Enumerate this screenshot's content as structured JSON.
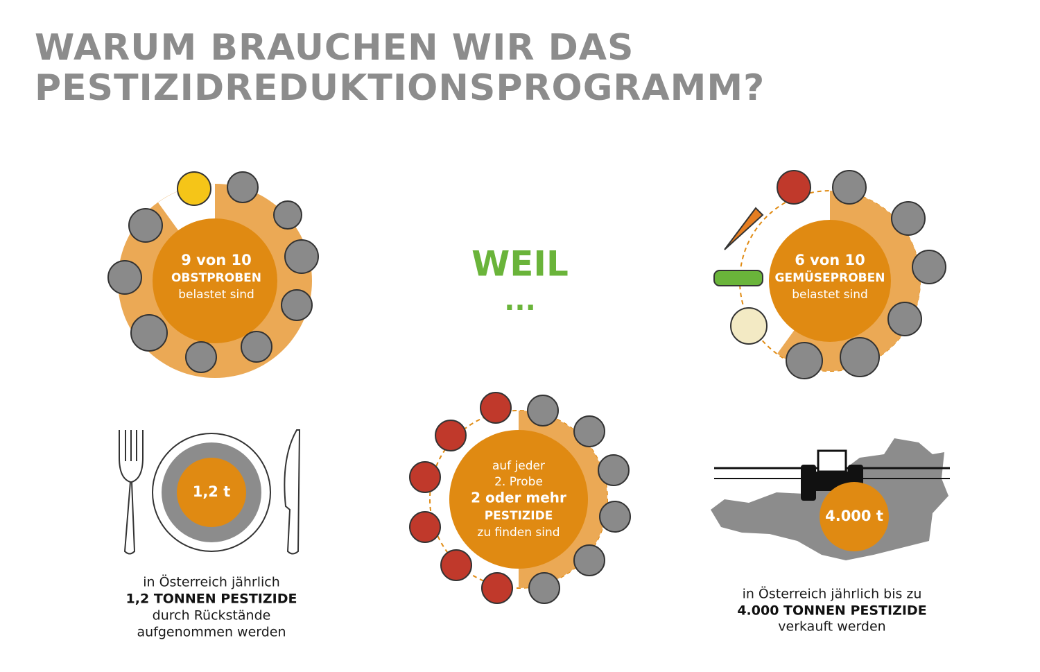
{
  "header": {
    "title": [
      "WARUM BRAUCHEN WIR DAS",
      "PESTIZIDREDUKTIONSPROGRAMM?"
    ]
  },
  "center": {
    "word": "WEIL",
    "dots": "..."
  },
  "fruit": {
    "lines": [
      "9 von 10",
      "OBSTPROBEN",
      "belastet sind"
    ]
  },
  "vegetables": {
    "lines": [
      "6 von 10",
      "GEMÜSEPROBEN",
      "belastet sind"
    ]
  },
  "plate": {
    "amount": "1,2 t",
    "caption": [
      "in Österreich jährlich",
      "1,2 TONNEN PESTIZIDE",
      "durch Rückstände",
      "aufgenommen werden"
    ]
  },
  "apples": {
    "lines": [
      "auf jeder",
      "2. Probe",
      "2 oder mehr",
      "PESTIZIDE",
      "zu finden sind"
    ]
  },
  "sales": {
    "amount": "4.000 t",
    "caption": [
      "in Österreich jährlich bis zu",
      "4.000 TONNEN PESTIZIDE",
      "verkauft werden"
    ]
  }
}
